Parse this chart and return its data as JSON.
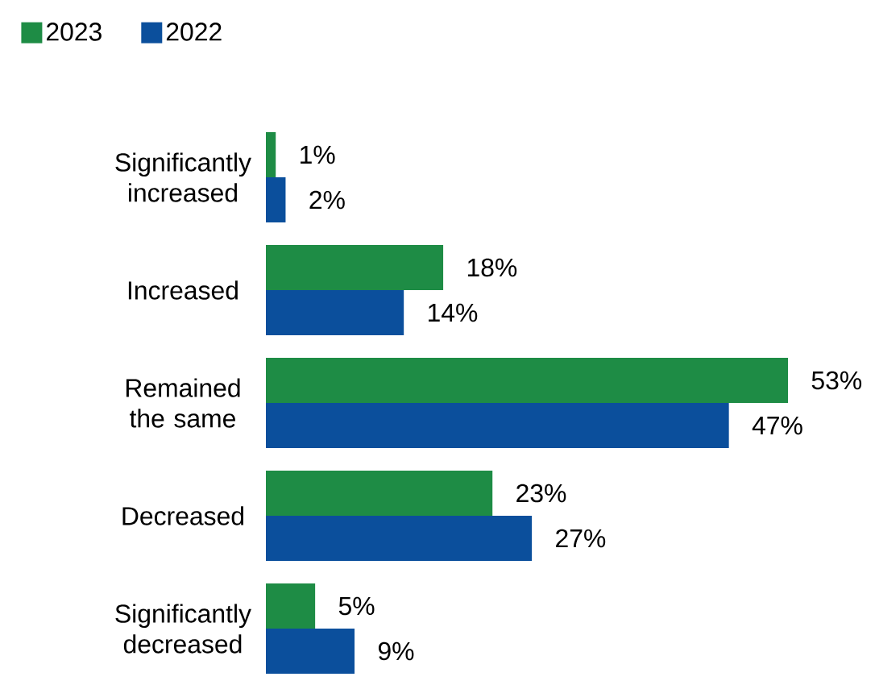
{
  "chart_data": {
    "type": "bar",
    "orientation": "horizontal",
    "legend": "top left",
    "categories": [
      "Significantly increased",
      "Increased",
      "Remained the same",
      "Decreased",
      "Significantly decreased"
    ],
    "series": [
      {
        "name": "2023",
        "color": "#1e8c45",
        "values": [
          1,
          18,
          53,
          23,
          5
        ],
        "value_labels": [
          "1%",
          "18%",
          "53%",
          "23%",
          "5%"
        ]
      },
      {
        "name": "2022",
        "color": "#0b4f9c",
        "values": [
          2,
          14,
          47,
          27,
          9
        ],
        "value_labels": [
          "2%",
          "14%",
          "47%",
          "27%",
          "9%"
        ]
      }
    ]
  }
}
